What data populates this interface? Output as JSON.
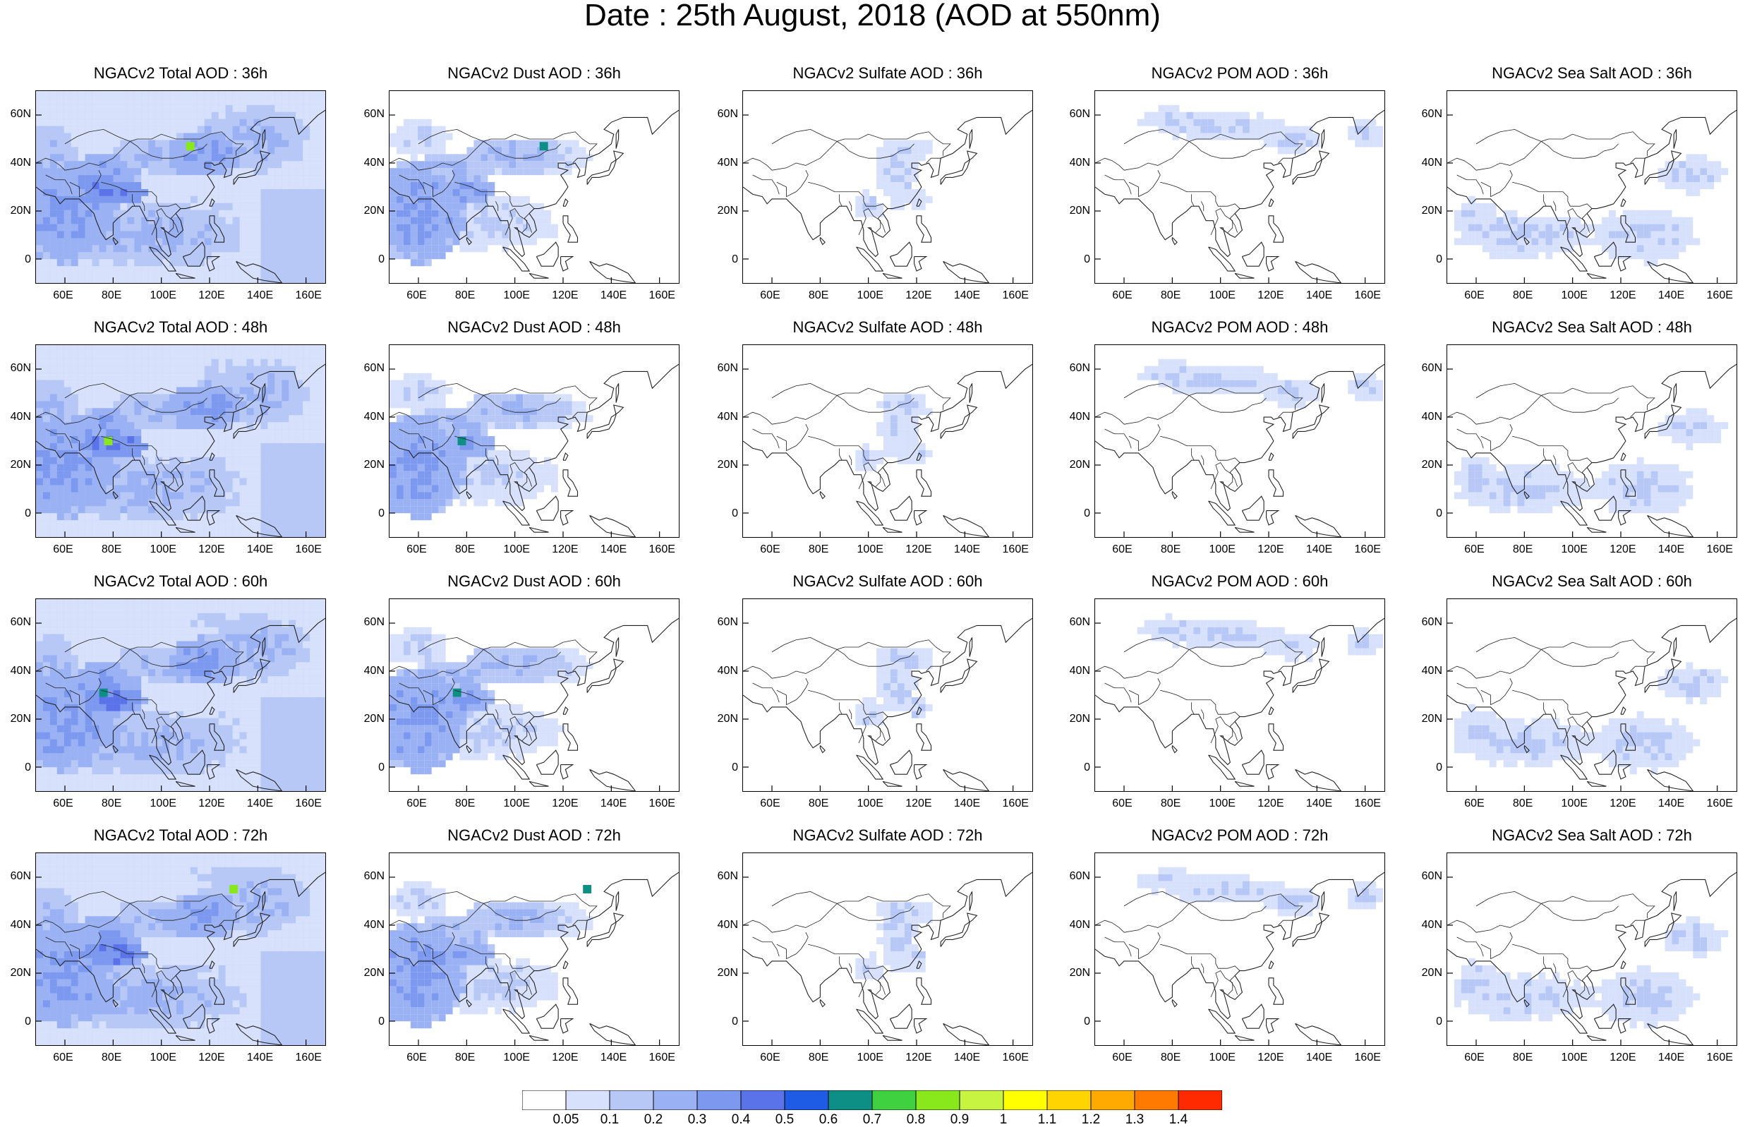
{
  "figure": {
    "title": "Date : 25th August, 2018 (AOD at 550nm)"
  },
  "axes": {
    "x_ticks": [
      "60E",
      "80E",
      "100E",
      "120E",
      "140E",
      "160E"
    ],
    "y_ticks": [
      "60N",
      "40N",
      "20N",
      "0"
    ],
    "lon_range": [
      48,
      168
    ],
    "lat_range": [
      -10,
      70
    ]
  },
  "panels": [
    {
      "title": "NGACv2 Total AOD : 36h",
      "species": "total",
      "lead": "36h",
      "level": 0.9
    },
    {
      "title": "NGACv2 Dust AOD : 36h",
      "species": "dust",
      "lead": "36h",
      "level": 0.7
    },
    {
      "title": "NGACv2 Sulfate AOD : 36h",
      "species": "sulfate",
      "lead": "36h",
      "level": 0.3
    },
    {
      "title": "NGACv2 POM AOD : 36h",
      "species": "pom",
      "lead": "36h",
      "level": 0.3
    },
    {
      "title": "NGACv2 Sea Salt AOD : 36h",
      "species": "seasalt",
      "lead": "36h",
      "level": 0.3
    },
    {
      "title": "NGACv2 Total AOD : 48h",
      "species": "total",
      "lead": "48h",
      "level": 0.9
    },
    {
      "title": "NGACv2 Dust AOD : 48h",
      "species": "dust",
      "lead": "48h",
      "level": 0.7
    },
    {
      "title": "NGACv2 Sulfate AOD : 48h",
      "species": "sulfate",
      "lead": "48h",
      "level": 0.3
    },
    {
      "title": "NGACv2 POM AOD : 48h",
      "species": "pom",
      "lead": "48h",
      "level": 0.3
    },
    {
      "title": "NGACv2 Sea Salt AOD : 48h",
      "species": "seasalt",
      "lead": "48h",
      "level": 0.3
    },
    {
      "title": "NGACv2 Total AOD : 60h",
      "species": "total",
      "lead": "60h",
      "level": 0.6
    },
    {
      "title": "NGACv2 Dust AOD : 60h",
      "species": "dust",
      "lead": "60h",
      "level": 0.6
    },
    {
      "title": "NGACv2 Sulfate AOD : 60h",
      "species": "sulfate",
      "lead": "60h",
      "level": 0.3
    },
    {
      "title": "NGACv2 POM AOD : 60h",
      "species": "pom",
      "lead": "60h",
      "level": 0.3
    },
    {
      "title": "NGACv2 Sea Salt AOD : 60h",
      "species": "seasalt",
      "lead": "60h",
      "level": 0.3
    },
    {
      "title": "NGACv2 Total AOD : 72h",
      "species": "total",
      "lead": "72h",
      "level": 0.9
    },
    {
      "title": "NGACv2 Dust AOD : 72h",
      "species": "dust",
      "lead": "72h",
      "level": 0.6
    },
    {
      "title": "NGACv2 Sulfate AOD : 72h",
      "species": "sulfate",
      "lead": "72h",
      "level": 0.3
    },
    {
      "title": "NGACv2 POM AOD : 72h",
      "species": "pom",
      "lead": "72h",
      "level": 0.3
    },
    {
      "title": "NGACv2 Sea Salt  AOD : 72h",
      "species": "seasalt",
      "lead": "72h",
      "level": 0.3
    }
  ],
  "colorbar": {
    "labels": [
      "0.05",
      "0.1",
      "0.2",
      "0.3",
      "0.4",
      "0.5",
      "0.6",
      "0.7",
      "0.8",
      "0.9",
      "1",
      "1.1",
      "1.2",
      "1.3",
      "1.4"
    ],
    "colors": [
      "#ffffff",
      "#d7e1fb",
      "#b7c8f7",
      "#9ab1f3",
      "#7c98ef",
      "#5b73e8",
      "#1f5ce6",
      "#0d8f86",
      "#3fd13f",
      "#88e81b",
      "#c7f441",
      "#ffff00",
      "#ffd400",
      "#ffaa00",
      "#ff7a00",
      "#ff2a00"
    ]
  }
}
